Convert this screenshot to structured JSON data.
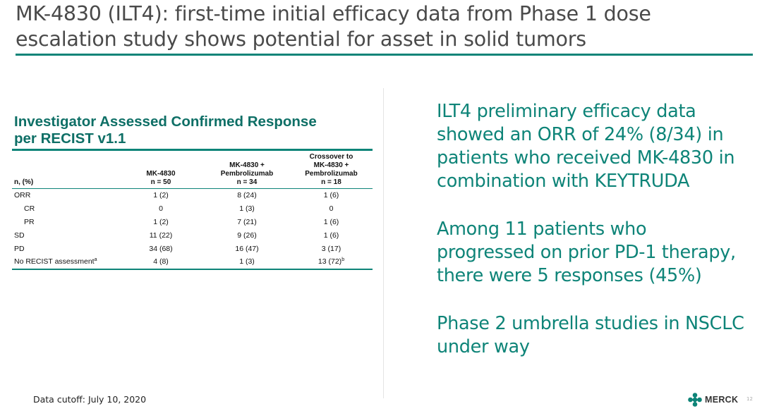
{
  "slide": {
    "title_line1": "MK-4830 (ILT4): first-time initial efficacy data from Phase 1 dose",
    "title_line2": "escalation study shows potential for asset in solid tumors",
    "page_number": "12"
  },
  "table": {
    "heading_line1": "Investigator Assessed Confirmed Response",
    "heading_line2": "per RECIST v1.1",
    "columns": [
      {
        "lines": [
          "n, (%)"
        ]
      },
      {
        "lines": [
          "MK-4830",
          "n = 50"
        ]
      },
      {
        "lines": [
          "MK-4830 +",
          "Pembrolizumab",
          "n = 34"
        ]
      },
      {
        "lines": [
          "Crossover to",
          "MK-4830 +",
          "Pembrolizumab",
          "n = 18"
        ]
      }
    ],
    "rows": [
      {
        "label": "ORR",
        "sup": "",
        "indent": false,
        "cells": [
          {
            "v": "1 (2)",
            "s": ""
          },
          {
            "v": "8 (24)",
            "s": ""
          },
          {
            "v": "1 (6)",
            "s": ""
          }
        ]
      },
      {
        "label": "CR",
        "sup": "",
        "indent": true,
        "cells": [
          {
            "v": "0",
            "s": ""
          },
          {
            "v": "1 (3)",
            "s": ""
          },
          {
            "v": "0",
            "s": ""
          }
        ]
      },
      {
        "label": "PR",
        "sup": "",
        "indent": true,
        "cells": [
          {
            "v": "1 (2)",
            "s": ""
          },
          {
            "v": "7 (21)",
            "s": ""
          },
          {
            "v": "1 (6)",
            "s": ""
          }
        ]
      },
      {
        "label": "SD",
        "sup": "",
        "indent": false,
        "cells": [
          {
            "v": "11 (22)",
            "s": ""
          },
          {
            "v": "9 (26)",
            "s": ""
          },
          {
            "v": "1 (6)",
            "s": ""
          }
        ]
      },
      {
        "label": "PD",
        "sup": "",
        "indent": false,
        "cells": [
          {
            "v": "34 (68)",
            "s": ""
          },
          {
            "v": "16 (47)",
            "s": ""
          },
          {
            "v": "3 (17)",
            "s": ""
          }
        ]
      },
      {
        "label": "No RECIST assessment",
        "sup": "a",
        "indent": false,
        "cells": [
          {
            "v": "4 (8)",
            "s": ""
          },
          {
            "v": "1 (3)",
            "s": ""
          },
          {
            "v": "13 (72)",
            "s": "b"
          }
        ]
      }
    ]
  },
  "bullets": [
    "ILT4 preliminary efficacy data showed an ORR of 24% (8/34) in patients who received MK-4830 in combination with KEYTRUDA",
    "Among 11 patients who progressed on prior PD-1 therapy, there were 5 responses (45%)",
    "Phase 2 umbrella studies in NSCLC under way"
  ],
  "footer": {
    "cutoff": "Data cutoff: July 10, 2020",
    "logo_text": "MERCK",
    "logo_icon": "merck-logo-icon"
  },
  "colors": {
    "accent": "#0e8478",
    "heading": "#0e6f66",
    "title": "#4a4a4a"
  }
}
